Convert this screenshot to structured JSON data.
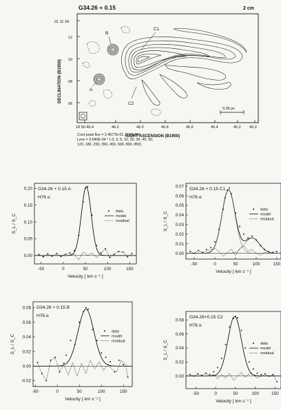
{
  "contour_map": {
    "title": "G34.26 + 0.15",
    "scale_label": "2 cm",
    "ylabel": "DECLINATION (B1950)",
    "xlabel": "RIGHT ASCENSION (B1950)",
    "dec_prefix": "01 11 18",
    "dec_ticks": [
      {
        "label": "01 11 18",
        "y": 0
      },
      {
        "label": "12",
        "y": 1
      },
      {
        "label": "10",
        "y": 2
      },
      {
        "label": "08",
        "y": 3
      },
      {
        "label": "06",
        "y": 4
      }
    ],
    "ra_ticks": [
      "18 50 46.4",
      "46.2",
      "46.0",
      "45.8",
      "45.6",
      "45.4",
      "45.2",
      "45.0"
    ],
    "source_labels": [
      "B",
      "C1",
      "A",
      "C2"
    ],
    "scalebar_label": "0.05 pc",
    "caption_line1": "Cont peak flux = 2.4577E-01 JY/BEAM",
    "caption_line2": "Levs = 3.040E-04 * (-3, 3, 5, 10, 20, 30, 40, 60,",
    "caption_line3": "120, 180, 250, 350, 450, 600, 800, 850)"
  },
  "chart_data": [
    {
      "type": "line",
      "panel": "A",
      "title": "G34.26 + 0.15  A",
      "subtitle": "H76 α",
      "xlabel": "Velocity  [ km s⁻¹ ]",
      "ylabel": "S_L / S_C",
      "xlim": [
        -65,
        165
      ],
      "ylim": [
        -0.025,
        0.215
      ],
      "xticks": [
        -50,
        0,
        50,
        100,
        150
      ],
      "yticks": [
        0.0,
        0.05,
        0.1,
        0.15,
        0.2
      ],
      "ytick_labels": [
        "0.00",
        "0.05",
        "0.10",
        "0.15",
        "0.20"
      ],
      "legend": [
        "data",
        "model",
        "residual"
      ],
      "model": {
        "components": [
          {
            "amp": 0.205,
            "center": 52,
            "sigma": 11
          }
        ]
      },
      "data_points": [
        [
          -55,
          0.003
        ],
        [
          -45,
          -0.004
        ],
        [
          -35,
          0.005
        ],
        [
          -25,
          -0.002
        ],
        [
          -15,
          0.006
        ],
        [
          -5,
          -0.003
        ],
        [
          5,
          0.004
        ],
        [
          15,
          0.008
        ],
        [
          25,
          0.015
        ],
        [
          35,
          0.06
        ],
        [
          45,
          0.16
        ],
        [
          50,
          0.2
        ],
        [
          55,
          0.205
        ],
        [
          65,
          0.12
        ],
        [
          75,
          0.03
        ],
        [
          85,
          0.008
        ],
        [
          95,
          0.02
        ],
        [
          105,
          -0.006
        ],
        [
          115,
          0.004
        ],
        [
          125,
          0.012
        ],
        [
          135,
          0.01
        ],
        [
          145,
          -0.004
        ],
        [
          155,
          0.006
        ]
      ],
      "residual": [
        [
          -55,
          0.003
        ],
        [
          -45,
          -0.004
        ],
        [
          -35,
          0.005
        ],
        [
          -25,
          -0.002
        ],
        [
          -15,
          0.006
        ],
        [
          -5,
          -0.003
        ],
        [
          5,
          0.004
        ],
        [
          15,
          0.006
        ],
        [
          25,
          0.003
        ],
        [
          35,
          -0.012
        ],
        [
          45,
          0.01
        ],
        [
          55,
          0.0
        ],
        [
          65,
          0.008
        ],
        [
          75,
          -0.006
        ],
        [
          85,
          0.006
        ],
        [
          95,
          0.02
        ],
        [
          105,
          -0.006
        ],
        [
          115,
          0.004
        ],
        [
          125,
          0.012
        ],
        [
          135,
          0.01
        ],
        [
          145,
          -0.004
        ],
        [
          155,
          0.006
        ]
      ]
    },
    {
      "type": "line",
      "panel": "C1",
      "title": "G34.26 + 0.15  C1",
      "subtitle": "H76 α",
      "xlabel": "Velocity  [ km s⁻¹ ]",
      "ylabel": "S_L / S_C",
      "xlim": [
        -70,
        160
      ],
      "ylim": [
        -0.006,
        0.073
      ],
      "xticks": [
        -50,
        0,
        50,
        100,
        150
      ],
      "yticks": [
        0.0,
        0.01,
        0.02,
        0.03,
        0.04,
        0.05,
        0.06,
        0.07
      ],
      "ytick_labels": [
        "0.00",
        "0.01",
        "0.02",
        "0.03",
        "0.04",
        "0.05",
        "0.06",
        "0.07"
      ],
      "legend": [
        "data",
        "model",
        "residual"
      ],
      "model": {
        "components": [
          {
            "amp": 0.066,
            "center": 33,
            "sigma": 16
          },
          {
            "amp": 0.016,
            "center": 90,
            "sigma": 18
          }
        ]
      },
      "data_points": [
        [
          -60,
          0.002
        ],
        [
          -50,
          0.0
        ],
        [
          -40,
          0.003
        ],
        [
          -30,
          0.001
        ],
        [
          -20,
          0.004
        ],
        [
          -10,
          0.006
        ],
        [
          0,
          0.012
        ],
        [
          10,
          0.025
        ],
        [
          20,
          0.046
        ],
        [
          25,
          0.058
        ],
        [
          30,
          0.066
        ],
        [
          35,
          0.068
        ],
        [
          40,
          0.062
        ],
        [
          50,
          0.042
        ],
        [
          60,
          0.028
        ],
        [
          70,
          0.02
        ],
        [
          80,
          0.016
        ],
        [
          90,
          0.018
        ],
        [
          100,
          0.014
        ],
        [
          110,
          0.008
        ],
        [
          120,
          0.004
        ],
        [
          130,
          0.002
        ],
        [
          140,
          0.001
        ],
        [
          150,
          0.002
        ]
      ],
      "residual": [
        [
          -60,
          0.002
        ],
        [
          -50,
          0.0
        ],
        [
          -40,
          0.003
        ],
        [
          -30,
          0.001
        ],
        [
          -20,
          0.002
        ],
        [
          -10,
          0.004
        ],
        [
          0,
          0.005
        ],
        [
          10,
          0.002
        ],
        [
          20,
          -0.003
        ],
        [
          30,
          0.001
        ],
        [
          40,
          0.004
        ],
        [
          50,
          -0.002
        ],
        [
          60,
          0.005
        ],
        [
          70,
          0.008
        ],
        [
          80,
          0.002
        ],
        [
          90,
          0.004
        ],
        [
          100,
          0.0
        ],
        [
          110,
          -0.002
        ],
        [
          120,
          0.001
        ],
        [
          130,
          0.0
        ],
        [
          140,
          0.001
        ],
        [
          150,
          0.002
        ]
      ]
    },
    {
      "type": "line",
      "panel": "B",
      "title": "G34.26 + 0.15  B",
      "subtitle": "H76 α",
      "xlabel": "Velocity  [ km s⁻¹ ]",
      "ylabel": "S_L / S_C",
      "xlim": [
        -55,
        170
      ],
      "ylim": [
        -0.028,
        0.088
      ],
      "xticks": [
        -50,
        0,
        50,
        100,
        150
      ],
      "yticks": [
        -0.02,
        0.0,
        0.02,
        0.04,
        0.06,
        0.08
      ],
      "ytick_labels": [
        "-0.02",
        "0.00",
        "0.02",
        "0.04",
        "0.06",
        "0.08"
      ],
      "legend": [
        "data",
        "model",
        "residual"
      ],
      "model": {
        "components": [
          {
            "amp": 0.078,
            "center": 65,
            "sigma": 18
          }
        ]
      },
      "data_points": [
        [
          -45,
          0.005
        ],
        [
          -35,
          -0.01
        ],
        [
          -25,
          -0.02
        ],
        [
          -15,
          0.008
        ],
        [
          -5,
          0.012
        ],
        [
          5,
          -0.008
        ],
        [
          15,
          0.004
        ],
        [
          20,
          0.015
        ],
        [
          30,
          0.035
        ],
        [
          40,
          0.03
        ],
        [
          50,
          0.06
        ],
        [
          60,
          0.075
        ],
        [
          65,
          0.08
        ],
        [
          70,
          0.078
        ],
        [
          80,
          0.05
        ],
        [
          90,
          0.035
        ],
        [
          100,
          0.018
        ],
        [
          110,
          0.012
        ],
        [
          120,
          0.006
        ],
        [
          130,
          -0.008
        ],
        [
          140,
          0.008
        ],
        [
          150,
          0.002
        ],
        [
          160,
          -0.015
        ]
      ],
      "residual": [
        [
          -45,
          0.005
        ],
        [
          -35,
          -0.01
        ],
        [
          -25,
          -0.02
        ],
        [
          -15,
          0.008
        ],
        [
          -5,
          0.012
        ],
        [
          5,
          -0.008
        ],
        [
          15,
          0.002
        ],
        [
          25,
          -0.012
        ],
        [
          35,
          0.005
        ],
        [
          45,
          -0.014
        ],
        [
          55,
          0.004
        ],
        [
          65,
          -0.01
        ],
        [
          75,
          0.008
        ],
        [
          85,
          -0.004
        ],
        [
          95,
          0.006
        ],
        [
          105,
          -0.006
        ],
        [
          115,
          0.003
        ],
        [
          125,
          -0.005
        ],
        [
          135,
          -0.008
        ],
        [
          145,
          0.008
        ],
        [
          155,
          0.002
        ],
        [
          160,
          -0.015
        ]
      ]
    },
    {
      "type": "line",
      "panel": "C2",
      "title": "G34.26+0.15 C2",
      "subtitle": "H76 α",
      "xlabel": "Velocity  [ km s⁻¹ ]",
      "ylabel": "S_L / S_C",
      "xlim": [
        -75,
        165
      ],
      "ylim": [
        -0.018,
        0.092
      ],
      "xticks": [
        -50,
        0,
        50,
        100,
        150
      ],
      "yticks": [
        0.0,
        0.02,
        0.04,
        0.06,
        0.08
      ],
      "ytick_labels": [
        "0.00",
        "0.02",
        "0.04",
        "0.06",
        "0.08"
      ],
      "legend": [
        "data",
        "model",
        "residual"
      ],
      "model": {
        "components": [
          {
            "amp": 0.085,
            "center": 48,
            "sigma": 17
          }
        ]
      },
      "data_points": [
        [
          -65,
          0.002
        ],
        [
          -55,
          0.0
        ],
        [
          -45,
          0.003
        ],
        [
          -35,
          0.001
        ],
        [
          -25,
          0.004
        ],
        [
          -15,
          0.002
        ],
        [
          -5,
          0.006
        ],
        [
          5,
          0.012
        ],
        [
          15,
          0.025
        ],
        [
          25,
          0.045
        ],
        [
          35,
          0.07
        ],
        [
          45,
          0.082
        ],
        [
          50,
          0.085
        ],
        [
          55,
          0.083
        ],
        [
          65,
          0.065
        ],
        [
          75,
          0.04
        ],
        [
          85,
          0.02
        ],
        [
          95,
          0.01
        ],
        [
          105,
          0.004
        ],
        [
          115,
          0.002
        ],
        [
          125,
          0.003
        ],
        [
          135,
          0.0
        ],
        [
          145,
          0.002
        ],
        [
          155,
          -0.008
        ]
      ],
      "residual": [
        [
          -65,
          0.002
        ],
        [
          -55,
          0.0
        ],
        [
          -45,
          0.003
        ],
        [
          -35,
          0.001
        ],
        [
          -25,
          0.004
        ],
        [
          -15,
          0.0
        ],
        [
          -5,
          0.002
        ],
        [
          5,
          -0.004
        ],
        [
          15,
          0.002
        ],
        [
          25,
          -0.003
        ],
        [
          35,
          0.004
        ],
        [
          45,
          -0.006
        ],
        [
          55,
          0.0
        ],
        [
          65,
          0.005
        ],
        [
          75,
          -0.002
        ],
        [
          85,
          0.004
        ],
        [
          95,
          0.002
        ],
        [
          105,
          -0.003
        ],
        [
          115,
          0.0
        ],
        [
          125,
          0.002
        ],
        [
          135,
          0.0
        ],
        [
          145,
          0.002
        ],
        [
          155,
          -0.008
        ]
      ]
    }
  ]
}
